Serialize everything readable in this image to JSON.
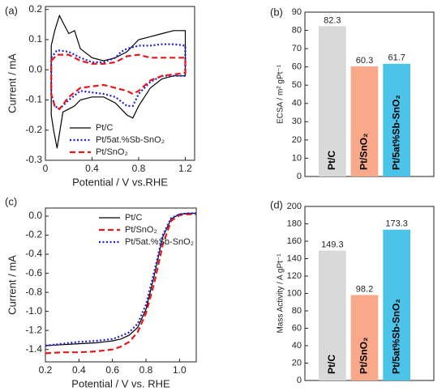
{
  "chart_data": [
    {
      "type": "line",
      "label": "(a)",
      "xlabel": "Potential / V vs.RHE",
      "ylabel": "Current / mA",
      "xlim": [
        0,
        1.28
      ],
      "ylim": [
        -0.3,
        0.21
      ],
      "xticks": [
        0,
        0.4,
        0.8,
        1.2
      ],
      "yticks": [
        -0.3,
        -0.2,
        -0.1,
        {
          "value": 0,
          "label": "0.0"
        },
        0.1,
        0.2
      ],
      "legend": "lower left",
      "series": [
        {
          "name": "Pt/C",
          "color": "#000000",
          "style": "solid",
          "x": [
            0.05,
            0.08,
            0.12,
            0.16,
            0.2,
            0.25,
            0.3,
            0.4,
            0.5,
            0.6,
            0.7,
            0.8,
            0.9,
            1.0,
            1.1,
            1.2,
            1.2,
            1.1,
            1.0,
            0.9,
            0.8,
            0.75,
            0.7,
            0.6,
            0.5,
            0.4,
            0.3,
            0.25,
            0.2,
            0.15,
            0.1,
            0.07,
            0.05,
            0.05
          ],
          "values": [
            0.08,
            0.13,
            0.18,
            0.15,
            0.12,
            0.13,
            0.07,
            0.04,
            0.03,
            0.04,
            0.06,
            0.1,
            0.11,
            0.12,
            0.13,
            0.13,
            -0.02,
            -0.02,
            -0.03,
            -0.06,
            -0.12,
            -0.16,
            -0.15,
            -0.11,
            -0.09,
            -0.09,
            -0.1,
            -0.12,
            -0.13,
            -0.14,
            -0.26,
            -0.2,
            -0.15,
            0.08
          ]
        },
        {
          "name": "Pt/5at.%Sb-SnO₂",
          "color": "#1f1fd6",
          "style": "dotted",
          "x": [
            0.05,
            0.1,
            0.2,
            0.3,
            0.4,
            0.5,
            0.6,
            0.65,
            0.7,
            0.8,
            0.9,
            1.0,
            1.1,
            1.2,
            1.2,
            1.0,
            0.9,
            0.8,
            0.75,
            0.7,
            0.6,
            0.5,
            0.4,
            0.3,
            0.2,
            0.12,
            0.08,
            0.05,
            0.05
          ],
          "values": [
            0.04,
            0.065,
            0.06,
            0.04,
            0.025,
            0.025,
            0.04,
            0.06,
            0.07,
            0.08,
            0.08,
            0.085,
            0.085,
            0.08,
            -0.02,
            -0.02,
            -0.04,
            -0.08,
            -0.12,
            -0.12,
            -0.09,
            -0.08,
            -0.075,
            -0.07,
            -0.1,
            -0.13,
            -0.12,
            -0.08,
            0.04
          ]
        },
        {
          "name": "Pt/SnO₂",
          "color": "#e8161b",
          "style": "dashed",
          "x": [
            0.05,
            0.1,
            0.2,
            0.3,
            0.4,
            0.5,
            0.6,
            0.7,
            0.8,
            0.9,
            1.0,
            1.1,
            1.2,
            1.2,
            1.0,
            0.9,
            0.8,
            0.75,
            0.7,
            0.6,
            0.5,
            0.4,
            0.3,
            0.2,
            0.12,
            0.08,
            0.05,
            0.05
          ],
          "values": [
            0.03,
            0.05,
            0.05,
            0.03,
            0.02,
            0.02,
            0.025,
            0.045,
            0.05,
            0.04,
            0.04,
            0.04,
            0.04,
            -0.01,
            -0.02,
            -0.035,
            -0.07,
            -0.08,
            -0.07,
            -0.06,
            -0.05,
            -0.055,
            -0.06,
            -0.09,
            -0.13,
            -0.12,
            -0.08,
            0.03
          ]
        }
      ]
    },
    {
      "type": "bar",
      "label": "(b)",
      "ylabel": "ECSA / m² gPt⁻¹",
      "categories": [
        "Pt/C",
        "Pt/SnO₂",
        "Pt/5at%Sb-SnO₂"
      ],
      "values": [
        82.3,
        60.3,
        61.7
      ],
      "colors": [
        "#d9d9d9",
        "#f9a98a",
        "#4cc4ea"
      ],
      "ylim": [
        0,
        90
      ],
      "yticks": [
        0,
        10,
        20,
        30,
        40,
        50,
        60,
        70,
        80,
        90
      ]
    },
    {
      "type": "line",
      "label": "(c)",
      "xlabel": "Potential / V vs. RHE",
      "ylabel": "Current / mA",
      "xlim": [
        0.2,
        1.1
      ],
      "ylim": [
        -1.53,
        0.085
      ],
      "xticks": [
        0.2,
        0.4,
        0.6,
        0.8,
        {
          "value": 1,
          "label": "1.0"
        }
      ],
      "yticks": [
        {
          "value": 0,
          "label": "0.0"
        },
        -0.2,
        -0.4,
        -0.6,
        -0.8,
        {
          "value": -1,
          "label": "-1.0"
        },
        -1.2,
        -1.4
      ],
      "legend": "upper right",
      "x": [
        0.2,
        0.3,
        0.4,
        0.5,
        0.6,
        0.65,
        0.7,
        0.75,
        0.8,
        0.85,
        0.9,
        0.95,
        1.0,
        1.05,
        1.1
      ],
      "series": [
        {
          "name": "Pt/C",
          "color": "#000000",
          "style": "solid",
          "values": [
            -1.36,
            -1.35,
            -1.34,
            -1.33,
            -1.31,
            -1.29,
            -1.25,
            -1.17,
            -0.98,
            -0.62,
            -0.22,
            -0.03,
            0.02,
            0.03,
            0.03
          ]
        },
        {
          "name": "Pt/SnO₂",
          "color": "#e8161b",
          "style": "dashed",
          "values": [
            -1.44,
            -1.43,
            -1.43,
            -1.42,
            -1.4,
            -1.37,
            -1.32,
            -1.22,
            -1.02,
            -0.7,
            -0.3,
            -0.05,
            0.01,
            0.02,
            0.02
          ]
        },
        {
          "name": "Pt/5at.%Sb-SnO₂",
          "color": "#1f1fd6",
          "style": "dotted",
          "values": [
            -1.36,
            -1.34,
            -1.32,
            -1.31,
            -1.29,
            -1.26,
            -1.22,
            -1.13,
            -0.93,
            -0.58,
            -0.2,
            -0.02,
            0.02,
            0.03,
            0.03
          ]
        }
      ]
    },
    {
      "type": "bar",
      "label": "(d)",
      "ylabel": "Mass Activity / A gPt⁻¹",
      "categories": [
        "Pt/C",
        "Pt/SnO₂",
        "Pt/5at%Sb-SnO₂"
      ],
      "values": [
        149.3,
        98.2,
        173.3
      ],
      "colors": [
        "#d9d9d9",
        "#f9a98a",
        "#4cc4ea"
      ],
      "ylim": [
        0,
        200
      ],
      "yticks": [
        0,
        20,
        40,
        60,
        80,
        100,
        120,
        140,
        160,
        180,
        200
      ]
    }
  ]
}
